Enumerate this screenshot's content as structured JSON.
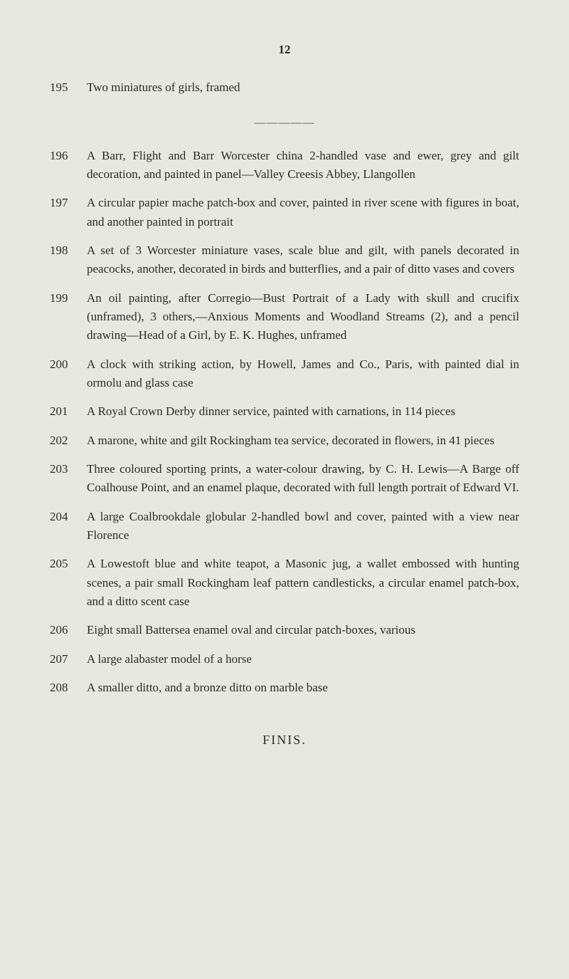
{
  "page_number": "12",
  "intro": {
    "lot": "195",
    "text": "Two miniatures of girls, framed"
  },
  "divider": "—————",
  "entries": [
    {
      "lot": "196",
      "text": "A Barr, Flight and Barr Worcester china 2-handled vase and ewer, grey and gilt decoration, and painted in panel—Valley Creesis Abbey, Llangollen"
    },
    {
      "lot": "197",
      "text": "A circular papier mache patch-box and cover, painted in river scene with figures in boat, and another painted in portrait"
    },
    {
      "lot": "198",
      "text": "A set of 3 Worcester miniature vases, scale blue and gilt, with panels decorated in peacocks, another, decorated in birds and butterflies, and a pair of ditto vases and covers"
    },
    {
      "lot": "199",
      "text": "An oil painting, after Corregio—Bust Portrait of a Lady with skull and crucifix (unframed), 3 others,—Anxious Moments and Woodland Streams (2), and a pencil drawing—Head of a Girl, by E. K. Hughes, unframed"
    },
    {
      "lot": "200",
      "text": "A clock with striking action, by Howell, James and Co., Paris, with painted dial in ormolu and glass case"
    },
    {
      "lot": "201",
      "text": "A Royal Crown Derby dinner service, painted with carnations, in 114 pieces"
    },
    {
      "lot": "202",
      "text": "A marone, white and gilt Rockingham tea service, decorated in flowers, in 41 pieces"
    },
    {
      "lot": "203",
      "text": "Three coloured sporting prints, a water-colour drawing, by C. H. Lewis—A Barge off Coalhouse Point, and an enamel plaque, decorated with full length portrait of Edward VI."
    },
    {
      "lot": "204",
      "text": "A large Coalbrookdale globular 2-handled bowl and cover, painted with a view near Florence"
    },
    {
      "lot": "205",
      "text": "A Lowestoft blue and white teapot, a Masonic jug, a wallet embossed with hunting scenes, a pair small Rockingham leaf pattern candlesticks, a circular enamel patch-box, and a ditto scent case"
    },
    {
      "lot": "206",
      "text": "Eight small Battersea enamel oval and circular patch-boxes, various"
    },
    {
      "lot": "207",
      "text": "A large alabaster model of a horse"
    },
    {
      "lot": "208",
      "text": "A smaller ditto, and a bronze ditto on marble base"
    }
  ],
  "finis": "FINIS."
}
